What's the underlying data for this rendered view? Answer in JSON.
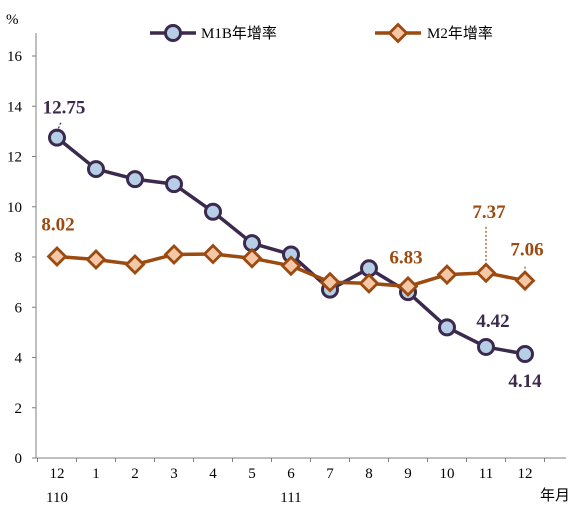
{
  "chart_data": {
    "type": "line",
    "ylabel": "%",
    "xlabel": "年月",
    "ylim": [
      0,
      16
    ],
    "yticks": [
      0,
      2,
      4,
      6,
      8,
      10,
      12,
      14,
      16
    ],
    "categories": [
      "12",
      "1",
      "2",
      "3",
      "4",
      "5",
      "6",
      "7",
      "8",
      "9",
      "10",
      "11",
      "12"
    ],
    "year_labels": [
      {
        "label": "110",
        "category_index": 0
      },
      {
        "label": "111",
        "category_index": 6
      }
    ],
    "legend_position": "top",
    "grid": false,
    "series": [
      {
        "name": "M1B年增率",
        "color": "#3b2a4d",
        "marker_fill": "#b7cfe6",
        "marker": "circle",
        "values": [
          12.75,
          11.5,
          11.1,
          10.9,
          9.8,
          8.55,
          8.1,
          6.7,
          7.55,
          6.6,
          5.2,
          4.42,
          4.14
        ]
      },
      {
        "name": "M2年增率",
        "color": "#9b4a10",
        "marker_fill": "#f4c7a6",
        "marker": "diamond",
        "values": [
          8.02,
          7.9,
          7.7,
          8.1,
          8.12,
          7.95,
          7.65,
          7.0,
          6.95,
          6.83,
          7.3,
          7.37,
          7.06
        ]
      }
    ],
    "data_labels": [
      {
        "series": 0,
        "index": 0,
        "text": "12.75"
      },
      {
        "series": 0,
        "index": 11,
        "text": "4.42"
      },
      {
        "series": 0,
        "index": 12,
        "text": "4.14"
      },
      {
        "series": 1,
        "index": 0,
        "text": "8.02"
      },
      {
        "series": 1,
        "index": 9,
        "text": "6.83"
      },
      {
        "series": 1,
        "index": 11,
        "text": "7.37"
      },
      {
        "series": 1,
        "index": 12,
        "text": "7.06"
      }
    ]
  }
}
